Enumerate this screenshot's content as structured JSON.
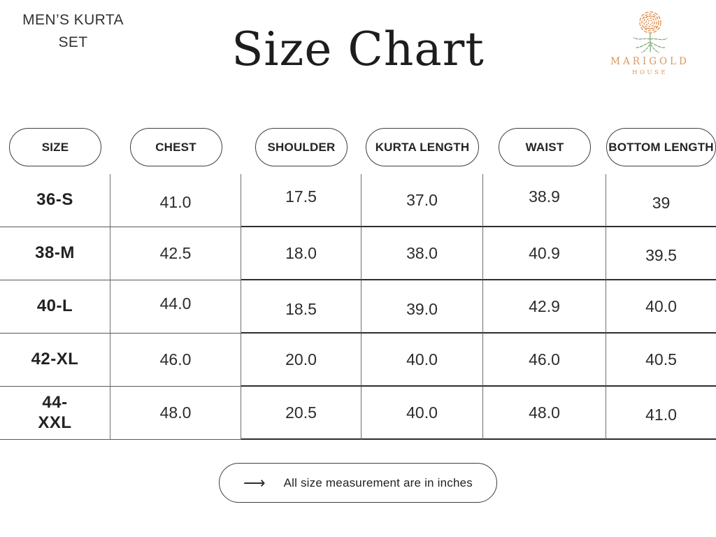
{
  "header": {
    "product_label": "MEN’S KURTA SET",
    "title": "Size Chart"
  },
  "logo": {
    "brand": "MARIGOLD",
    "sub": "HOUSE",
    "flower_color": "#e08c4a",
    "leaf_color": "#87a97f",
    "text_color": "#d9975f"
  },
  "table": {
    "columns": [
      "SIZE",
      "CHEST",
      "SHOULDER",
      "KURTA LENGTH",
      "WAIST",
      "BOTTOM LENGTH"
    ],
    "rows": [
      {
        "size": "36-S",
        "values": [
          "41.0",
          "17.5",
          "37.0",
          "38.9",
          "39"
        ]
      },
      {
        "size": "38-M",
        "values": [
          "42.5",
          "18.0",
          "38.0",
          "40.9",
          "39.5"
        ]
      },
      {
        "size": "40-L",
        "values": [
          "44.0",
          "18.5",
          "39.0",
          "42.9",
          "40.0"
        ]
      },
      {
        "size": "42-XL",
        "values": [
          "46.0",
          "20.0",
          "40.0",
          "46.0",
          "40.5"
        ]
      },
      {
        "size": "44-XXL",
        "values": [
          "48.0",
          "20.5",
          "40.0",
          "48.0",
          "41.0"
        ]
      }
    ]
  },
  "footer": {
    "arrow": "⟶",
    "note": "All size measurement are in inches"
  }
}
